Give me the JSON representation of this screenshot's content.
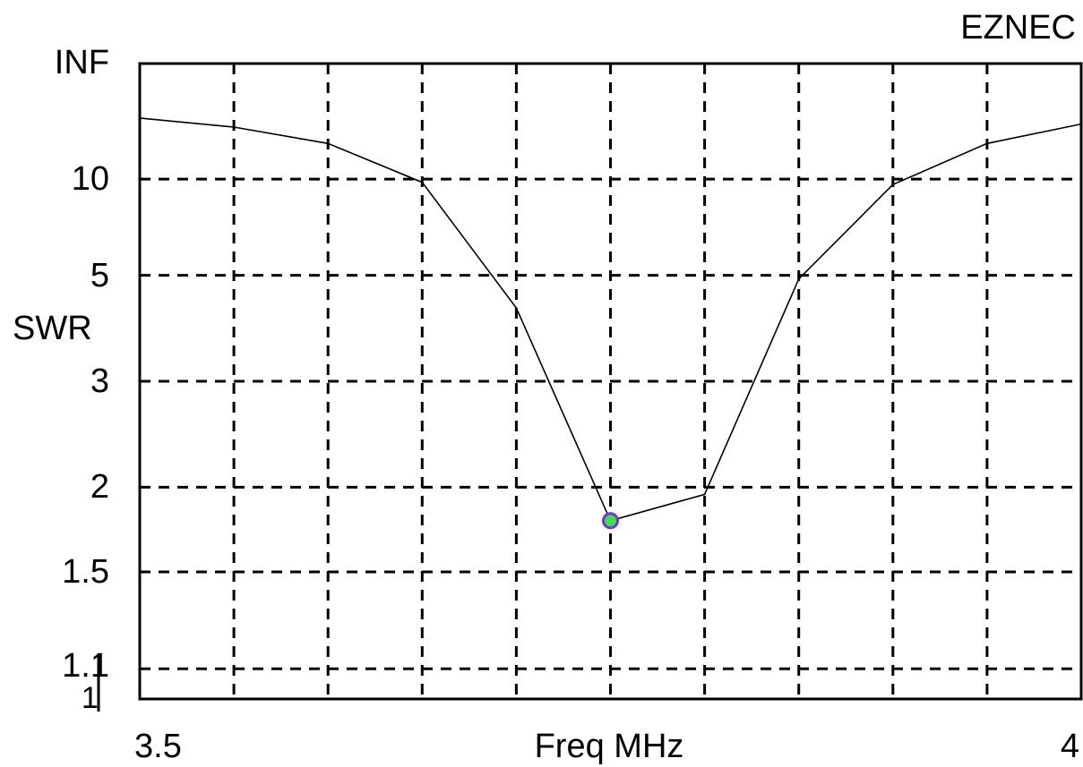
{
  "brand": "EZNEC",
  "chart_data": {
    "type": "line",
    "xlabel": "Freq MHz",
    "ylabel": "SWR",
    "x_tick_labels": {
      "left": "3.5",
      "right": "4"
    },
    "xlim": [
      3.5,
      4.0
    ],
    "y_tick_labels": [
      "INF",
      "10",
      "5",
      "3",
      "2",
      "1.5",
      "1.1",
      "1"
    ],
    "y_tick_values": [
      1000,
      10,
      5,
      3,
      2,
      1.5,
      1.1,
      1
    ],
    "y_scale": "reflection",
    "grid": true,
    "grid_x": [
      3.55,
      3.6,
      3.65,
      3.7,
      3.75,
      3.8,
      3.85,
      3.9,
      3.95
    ],
    "grid_y": [
      10,
      5,
      3,
      2,
      1.5,
      1.1
    ],
    "series": [
      {
        "color": "#000000",
        "x": [
          3.5,
          3.55,
          3.6,
          3.65,
          3.7,
          3.75,
          3.8,
          3.85,
          3.9,
          3.95,
          4.0
        ],
        "y": [
          22.3,
          19.0,
          14.9,
          9.7,
          4.2,
          1.78,
          1.95,
          4.9,
          9.5,
          14.9,
          20.0
        ]
      }
    ],
    "marker": {
      "x": 3.75,
      "y": 1.78,
      "color": "#7b2fd6",
      "fill": "#3ce04a"
    }
  }
}
